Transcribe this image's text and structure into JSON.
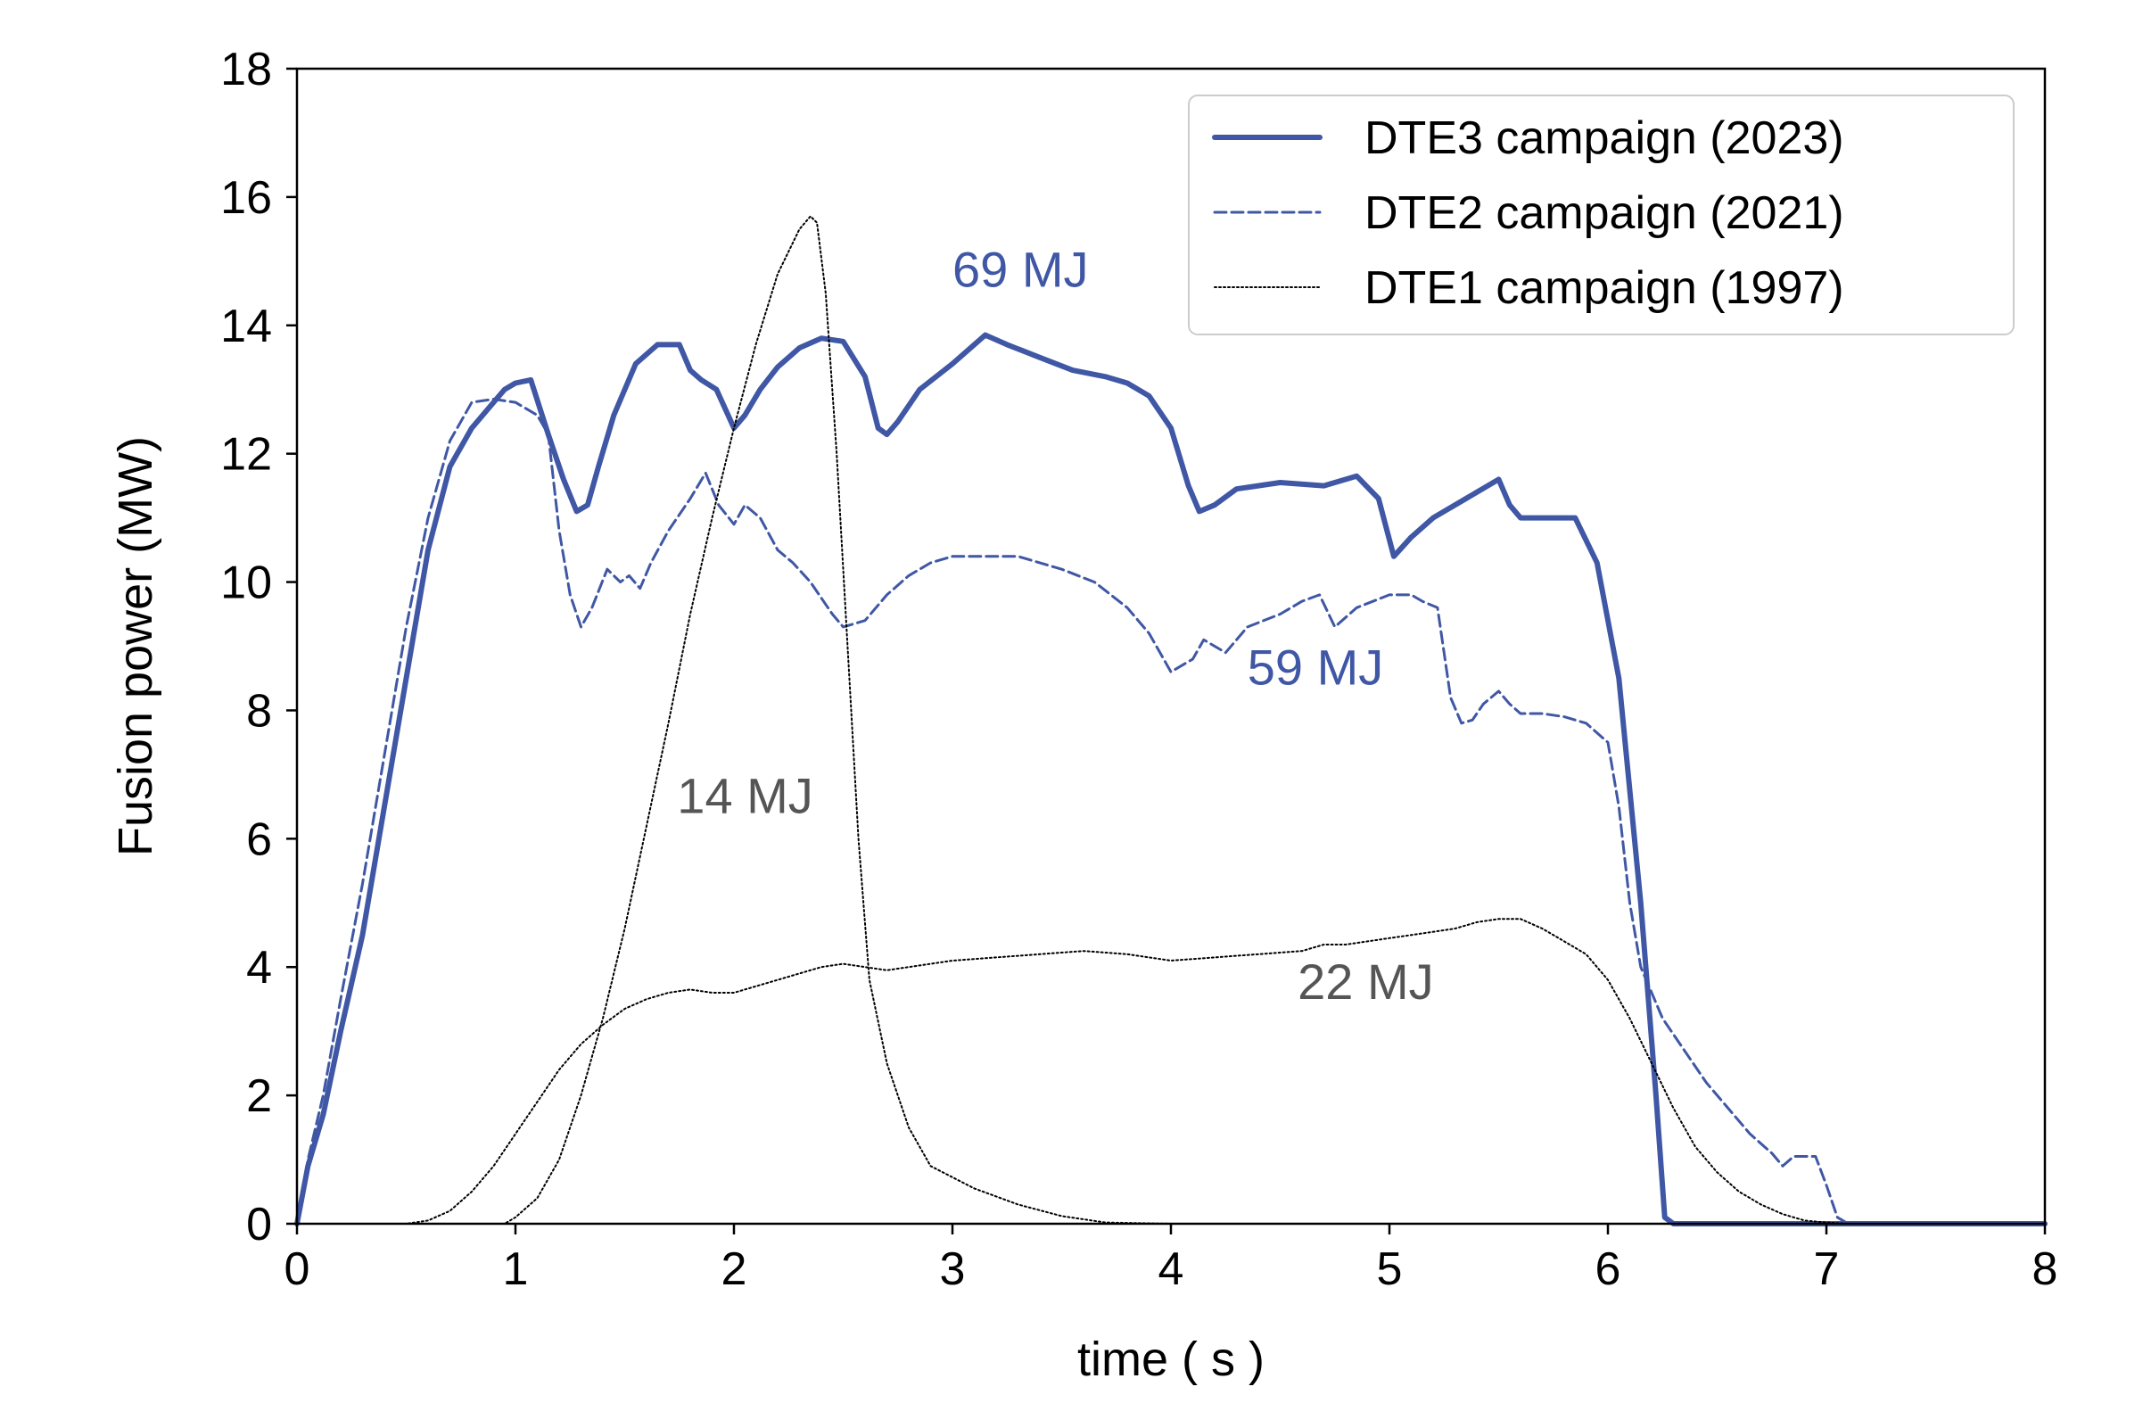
{
  "chart_data": {
    "type": "line",
    "title": "",
    "xlabel": "time  ( s )",
    "ylabel": "Fusion power (MW)",
    "xlim": [
      0,
      8
    ],
    "ylim": [
      0,
      18
    ],
    "xticks": [
      0,
      1,
      2,
      3,
      4,
      5,
      6,
      7,
      8
    ],
    "yticks": [
      0,
      2,
      4,
      6,
      8,
      10,
      12,
      14,
      16,
      18
    ],
    "grid": false,
    "legend_position": "top-right",
    "colors": {
      "dte3": "#3f57a5",
      "dte2": "#3f57a5",
      "dte1": "#000000",
      "anno_blue": "#3f57a5",
      "anno_gray": "#555555"
    },
    "series": [
      {
        "name": "DTE3 campaign (2023)",
        "style": "solid-thick",
        "x": [
          0,
          0.05,
          0.12,
          0.2,
          0.3,
          0.4,
          0.5,
          0.6,
          0.7,
          0.8,
          0.9,
          0.95,
          1.0,
          1.07,
          1.15,
          1.22,
          1.28,
          1.33,
          1.38,
          1.45,
          1.55,
          1.65,
          1.75,
          1.8,
          1.85,
          1.92,
          2.0,
          2.05,
          2.12,
          2.2,
          2.3,
          2.4,
          2.5,
          2.6,
          2.66,
          2.7,
          2.75,
          2.85,
          3.0,
          3.15,
          3.25,
          3.4,
          3.55,
          3.7,
          3.8,
          3.9,
          4.0,
          4.08,
          4.13,
          4.2,
          4.3,
          4.5,
          4.7,
          4.85,
          4.95,
          5.02,
          5.1,
          5.2,
          5.35,
          5.5,
          5.55,
          5.6,
          5.7,
          5.85,
          5.95,
          6.05,
          6.15,
          6.22,
          6.26,
          6.3,
          6.5,
          7.0,
          7.5,
          8.0
        ],
        "y": [
          0,
          0.9,
          1.7,
          3.0,
          4.5,
          6.5,
          8.5,
          10.5,
          11.8,
          12.4,
          12.8,
          13.0,
          13.1,
          13.15,
          12.3,
          11.6,
          11.1,
          11.2,
          11.8,
          12.6,
          13.4,
          13.7,
          13.7,
          13.3,
          13.15,
          13.0,
          12.4,
          12.6,
          13.0,
          13.35,
          13.65,
          13.8,
          13.75,
          13.2,
          12.4,
          12.3,
          12.5,
          13.0,
          13.4,
          13.85,
          13.7,
          13.5,
          13.3,
          13.2,
          13.1,
          12.9,
          12.4,
          11.5,
          11.1,
          11.2,
          11.45,
          11.55,
          11.5,
          11.65,
          11.3,
          10.4,
          10.7,
          11.0,
          11.3,
          11.6,
          11.2,
          11.0,
          11.0,
          11.0,
          10.3,
          8.5,
          5.0,
          2.0,
          0.1,
          0,
          0,
          0,
          0,
          0
        ]
      },
      {
        "name": "DTE2 campaign (2021)",
        "style": "dashed",
        "x": [
          0,
          0.05,
          0.12,
          0.2,
          0.3,
          0.4,
          0.5,
          0.6,
          0.7,
          0.8,
          0.9,
          1.0,
          1.1,
          1.15,
          1.2,
          1.25,
          1.3,
          1.35,
          1.42,
          1.48,
          1.52,
          1.57,
          1.62,
          1.7,
          1.8,
          1.87,
          1.93,
          2.0,
          2.05,
          2.12,
          2.2,
          2.27,
          2.35,
          2.45,
          2.5,
          2.6,
          2.7,
          2.8,
          2.9,
          3.0,
          3.15,
          3.3,
          3.5,
          3.65,
          3.8,
          3.9,
          4.0,
          4.1,
          4.15,
          4.25,
          4.35,
          4.5,
          4.6,
          4.68,
          4.75,
          4.85,
          5.0,
          5.1,
          5.15,
          5.22,
          5.28,
          5.33,
          5.38,
          5.43,
          5.5,
          5.55,
          5.6,
          5.7,
          5.8,
          5.9,
          6.0,
          6.05,
          6.1,
          6.15,
          6.25,
          6.35,
          6.45,
          6.55,
          6.65,
          6.75,
          6.8,
          6.85,
          6.95,
          7.0,
          7.05,
          7.1,
          7.5,
          8.0
        ],
        "y": [
          0,
          1.0,
          2.0,
          3.5,
          5.3,
          7.3,
          9.3,
          11.0,
          12.2,
          12.8,
          12.85,
          12.8,
          12.6,
          12.3,
          10.8,
          9.8,
          9.3,
          9.6,
          10.2,
          10.0,
          10.1,
          9.9,
          10.3,
          10.8,
          11.3,
          11.7,
          11.2,
          10.9,
          11.2,
          11.0,
          10.5,
          10.3,
          10.0,
          9.5,
          9.3,
          9.4,
          9.8,
          10.1,
          10.3,
          10.4,
          10.4,
          10.4,
          10.2,
          10.0,
          9.6,
          9.2,
          8.6,
          8.8,
          9.1,
          8.9,
          9.3,
          9.5,
          9.7,
          9.8,
          9.3,
          9.6,
          9.8,
          9.8,
          9.7,
          9.6,
          8.2,
          7.8,
          7.85,
          8.1,
          8.3,
          8.1,
          7.95,
          7.95,
          7.9,
          7.8,
          7.5,
          6.5,
          5.0,
          4.0,
          3.2,
          2.7,
          2.2,
          1.8,
          1.4,
          1.1,
          0.9,
          1.05,
          1.05,
          0.6,
          0.1,
          0,
          0,
          0
        ]
      },
      {
        "name": "DTE1 campaign (1997)",
        "style": "dotted",
        "x": [
          0,
          0.95,
          1.0,
          1.1,
          1.2,
          1.3,
          1.4,
          1.5,
          1.6,
          1.7,
          1.8,
          1.9,
          2.0,
          2.1,
          2.2,
          2.3,
          2.35,
          2.38,
          2.42,
          2.47,
          2.52,
          2.57,
          2.62,
          2.7,
          2.8,
          2.9,
          3.1,
          3.3,
          3.5,
          3.7,
          4.0,
          8.0
        ],
        "y": [
          0,
          0,
          0.1,
          0.4,
          1.0,
          2.0,
          3.2,
          4.6,
          6.2,
          7.8,
          9.5,
          11.0,
          12.4,
          13.7,
          14.8,
          15.5,
          15.7,
          15.6,
          14.5,
          12.0,
          9.0,
          6.0,
          3.8,
          2.5,
          1.5,
          0.9,
          0.55,
          0.3,
          0.12,
          0.02,
          0,
          0
        ]
      },
      {
        "name": "",
        "style": "dotted",
        "x": [
          0,
          0.5,
          0.6,
          0.7,
          0.8,
          0.9,
          1.0,
          1.1,
          1.2,
          1.3,
          1.4,
          1.5,
          1.6,
          1.7,
          1.8,
          1.9,
          2.0,
          2.1,
          2.2,
          2.3,
          2.4,
          2.5,
          2.6,
          2.7,
          2.8,
          3.0,
          3.2,
          3.4,
          3.6,
          3.8,
          4.0,
          4.2,
          4.4,
          4.6,
          4.7,
          4.8,
          5.0,
          5.1,
          5.2,
          5.3,
          5.4,
          5.5,
          5.6,
          5.7,
          5.8,
          5.9,
          6.0,
          6.1,
          6.2,
          6.3,
          6.4,
          6.5,
          6.6,
          6.7,
          6.8,
          6.9,
          7.0,
          7.1,
          8.0
        ],
        "y": [
          0,
          0,
          0.05,
          0.2,
          0.5,
          0.9,
          1.4,
          1.9,
          2.4,
          2.8,
          3.1,
          3.35,
          3.5,
          3.6,
          3.65,
          3.6,
          3.6,
          3.7,
          3.8,
          3.9,
          4.0,
          4.05,
          4.0,
          3.95,
          4.0,
          4.1,
          4.15,
          4.2,
          4.25,
          4.2,
          4.1,
          4.15,
          4.2,
          4.25,
          4.35,
          4.35,
          4.45,
          4.5,
          4.55,
          4.6,
          4.7,
          4.75,
          4.75,
          4.6,
          4.4,
          4.2,
          3.8,
          3.2,
          2.5,
          1.8,
          1.2,
          0.8,
          0.5,
          0.3,
          0.15,
          0.05,
          0.02,
          0,
          0
        ]
      }
    ],
    "annotations": [
      {
        "text": "69 MJ",
        "x": 3.0,
        "y": 14.6,
        "color": "#3f57a5"
      },
      {
        "text": "59 MJ",
        "x": 4.35,
        "y": 8.4,
        "color": "#3f57a5"
      },
      {
        "text": "14 MJ",
        "x": 1.74,
        "y": 6.4,
        "color": "#555555"
      },
      {
        "text": "22 MJ",
        "x": 4.58,
        "y": 3.5,
        "color": "#555555"
      }
    ]
  }
}
